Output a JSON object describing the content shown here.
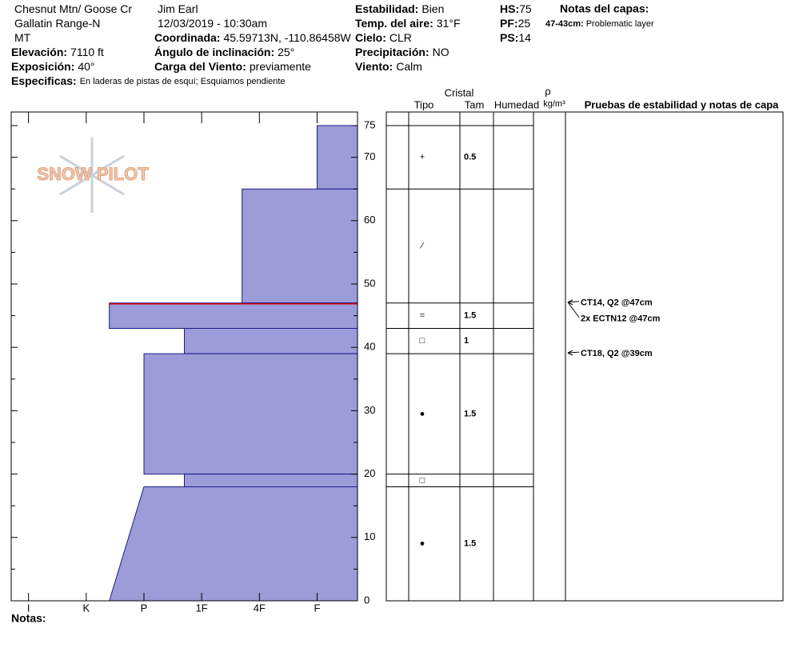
{
  "header": {
    "columns": [
      [
        {
          "value": "Chesnut Mtn/ Goose Cr"
        },
        {
          "value": "Gallatin Range-N"
        },
        {
          "value": "MT"
        },
        {
          "label": "Elevación:",
          "value": "7110 ft"
        },
        {
          "label": "Exposición:",
          "value": "40°"
        }
      ],
      [
        {
          "value": "Jim Earl"
        },
        {
          "value": "12/03/2019 - 10:30am"
        },
        {
          "label": "Coordinada:",
          "value": "45.59713N, -110.86458W"
        },
        {
          "label": "Ángulo de inclinación:",
          "value": "25°"
        },
        {
          "label": "Carga del Viento:",
          "value": "previamente"
        }
      ],
      [
        {
          "label": "Estabilidad:",
          "value": "Bien"
        },
        {
          "label": "Temp. del aire:",
          "value": "31°F"
        },
        {
          "label": "Cielo:",
          "value": "CLR"
        },
        {
          "label": "Precipitación:",
          "value": "NO"
        },
        {
          "label": "Viento:",
          "value": "Calm"
        }
      ],
      [
        {
          "label": "HS:",
          "value": "75"
        },
        {
          "label": "PF:",
          "value": "25"
        },
        {
          "label": "PS:",
          "value": "14"
        }
      ]
    ],
    "specifics": {
      "label": "Especificas:",
      "value": "En laderas de pistas de esquí; Esquiamos pendiente"
    },
    "layer_notes": {
      "title": "Notas del capas:",
      "items": [
        {
          "label": "47-43cm:",
          "value": "Problematic layer"
        }
      ]
    }
  },
  "chart_data": {
    "type": "snow-profile",
    "logo": "SNOW PILOT",
    "ylim": [
      0,
      75
    ],
    "yticks": [
      0,
      10,
      20,
      30,
      40,
      50,
      60,
      70,
      75
    ],
    "yminor": [
      5,
      15,
      25,
      35,
      45,
      55,
      65
    ],
    "hardness_lim": [
      6.3,
      0.3
    ],
    "hardness_ticks": [
      {
        "value": 6,
        "label": "I"
      },
      {
        "value": 5,
        "label": "K"
      },
      {
        "value": 4,
        "label": "P"
      },
      {
        "value": 3,
        "label": "1F"
      },
      {
        "value": 2,
        "label": "4F"
      },
      {
        "value": 1,
        "label": "F"
      }
    ],
    "fill": "#9c9cd8",
    "stroke": "#1a1a8c",
    "marker": {
      "height": 47,
      "color": "#cc0000"
    },
    "layers": [
      {
        "top": 75,
        "bottom": 65,
        "hardness": 1,
        "crystal": "+",
        "size": 0.5
      },
      {
        "top": 65,
        "bottom": 47,
        "hardness": 2.3,
        "crystal": "⁄"
      },
      {
        "top": 47,
        "bottom": 43,
        "hardness": 4.6,
        "crystal": "=",
        "size": 1.5
      },
      {
        "top": 43,
        "bottom": 39,
        "hardness": 3.3,
        "crystal": "□",
        "size": 1
      },
      {
        "top": 39,
        "bottom": 20,
        "hardness": 4,
        "crystal": "●",
        "size": 1.5
      },
      {
        "top": 20,
        "bottom": 18,
        "hardness": 3.3,
        "crystal": "□"
      },
      {
        "top": 18,
        "bottom": 0,
        "hardness": 4,
        "hardness_bottom": 4.6,
        "crystal": "●",
        "size": 1.5
      }
    ],
    "table_headers": {
      "crystal": "Cristal",
      "type": "Tipo",
      "size": "Tam",
      "moisture": "Humedad",
      "rho": "ρ",
      "density": "kg/m³",
      "tests": "Pruebas de estabilidad y notas de capa"
    },
    "tests": [
      {
        "text": "CT14, Q2 @47cm",
        "height": 47
      },
      {
        "text": "2x ECTN12 @47cm",
        "height": 47
      },
      {
        "text": "CT18, Q2 @39cm",
        "height": 39
      }
    ],
    "notes_label": "Notas:"
  }
}
